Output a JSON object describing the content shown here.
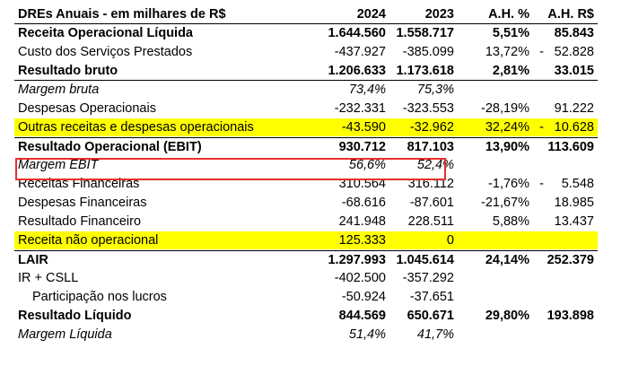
{
  "header": {
    "title": "DREs Anuais - em milhares de R$",
    "c1": "2024",
    "c2": "2023",
    "c3": "A.H. %",
    "c4": "A.H. R$"
  },
  "rows": [
    {
      "label": "Receita Operacional Líquida",
      "v2024": "1.644.560",
      "v2023": "1.558.717",
      "ah_pct": "5,51%",
      "ah_dash": "",
      "ah_rs": "85.843"
    },
    {
      "label": "Custo dos Serviços Prestados",
      "v2024": "-437.927",
      "v2023": "-385.099",
      "ah_pct": "13,72%",
      "ah_dash": "-",
      "ah_rs": "52.828"
    },
    {
      "label": "Resultado bruto",
      "v2024": "1.206.633",
      "v2023": "1.173.618",
      "ah_pct": "2,81%",
      "ah_dash": "",
      "ah_rs": "33.015"
    },
    {
      "label": "Margem bruta",
      "v2024": "73,4%",
      "v2023": "75,3%",
      "ah_pct": "",
      "ah_dash": "",
      "ah_rs": ""
    },
    {
      "label": "Despesas Operacionais",
      "v2024": "-232.331",
      "v2023": "-323.553",
      "ah_pct": "-28,19%",
      "ah_dash": "",
      "ah_rs": "91.222"
    },
    {
      "label": "Outras receitas e despesas operacionais",
      "v2024": "-43.590",
      "v2023": "-32.962",
      "ah_pct": "32,24%",
      "ah_dash": "-",
      "ah_rs": "10.628"
    },
    {
      "label": "Resultado Operacional (EBIT)",
      "v2024": "930.712",
      "v2023": "817.103",
      "ah_pct": "13,90%",
      "ah_dash": "",
      "ah_rs": "113.609"
    },
    {
      "label": "Margem EBIT",
      "v2024": "56,6%",
      "v2023": "52,4%",
      "ah_pct": "",
      "ah_dash": "",
      "ah_rs": ""
    },
    {
      "label": "Receitas Financeiras",
      "v2024": "310.564",
      "v2023": "316.112",
      "ah_pct": "-1,76%",
      "ah_dash": "-",
      "ah_rs": "5.548"
    },
    {
      "label": "Despesas Financeiras",
      "v2024": "-68.616",
      "v2023": "-87.601",
      "ah_pct": "-21,67%",
      "ah_dash": "",
      "ah_rs": "18.985"
    },
    {
      "label": "Resultado Financeiro",
      "v2024": "241.948",
      "v2023": "228.511",
      "ah_pct": "5,88%",
      "ah_dash": "",
      "ah_rs": "13.437"
    },
    {
      "label": "Receita não operacional",
      "v2024": "125.333",
      "v2023": "0",
      "ah_pct": "",
      "ah_dash": "",
      "ah_rs": ""
    },
    {
      "label": "LAIR",
      "v2024": "1.297.993",
      "v2023": "1.045.614",
      "ah_pct": "24,14%",
      "ah_dash": "",
      "ah_rs": "252.379"
    },
    {
      "label": "IR + CSLL",
      "v2024": "-402.500",
      "v2023": "-357.292",
      "ah_pct": "",
      "ah_dash": "",
      "ah_rs": ""
    },
    {
      "label": "Participação nos lucros",
      "v2024": "-50.924",
      "v2023": "-37.651",
      "ah_pct": "",
      "ah_dash": "",
      "ah_rs": ""
    },
    {
      "label": "Resultado Líquido",
      "v2024": "844.569",
      "v2023": "650.671",
      "ah_pct": "29,80%",
      "ah_dash": "",
      "ah_rs": "193.898"
    },
    {
      "label": "Margem Líquida",
      "v2024": "51,4%",
      "v2023": "41,7%",
      "ah_pct": "",
      "ah_dash": "",
      "ah_rs": ""
    }
  ],
  "colors": {
    "highlight": "#ffff00",
    "box": "#e8302c"
  }
}
